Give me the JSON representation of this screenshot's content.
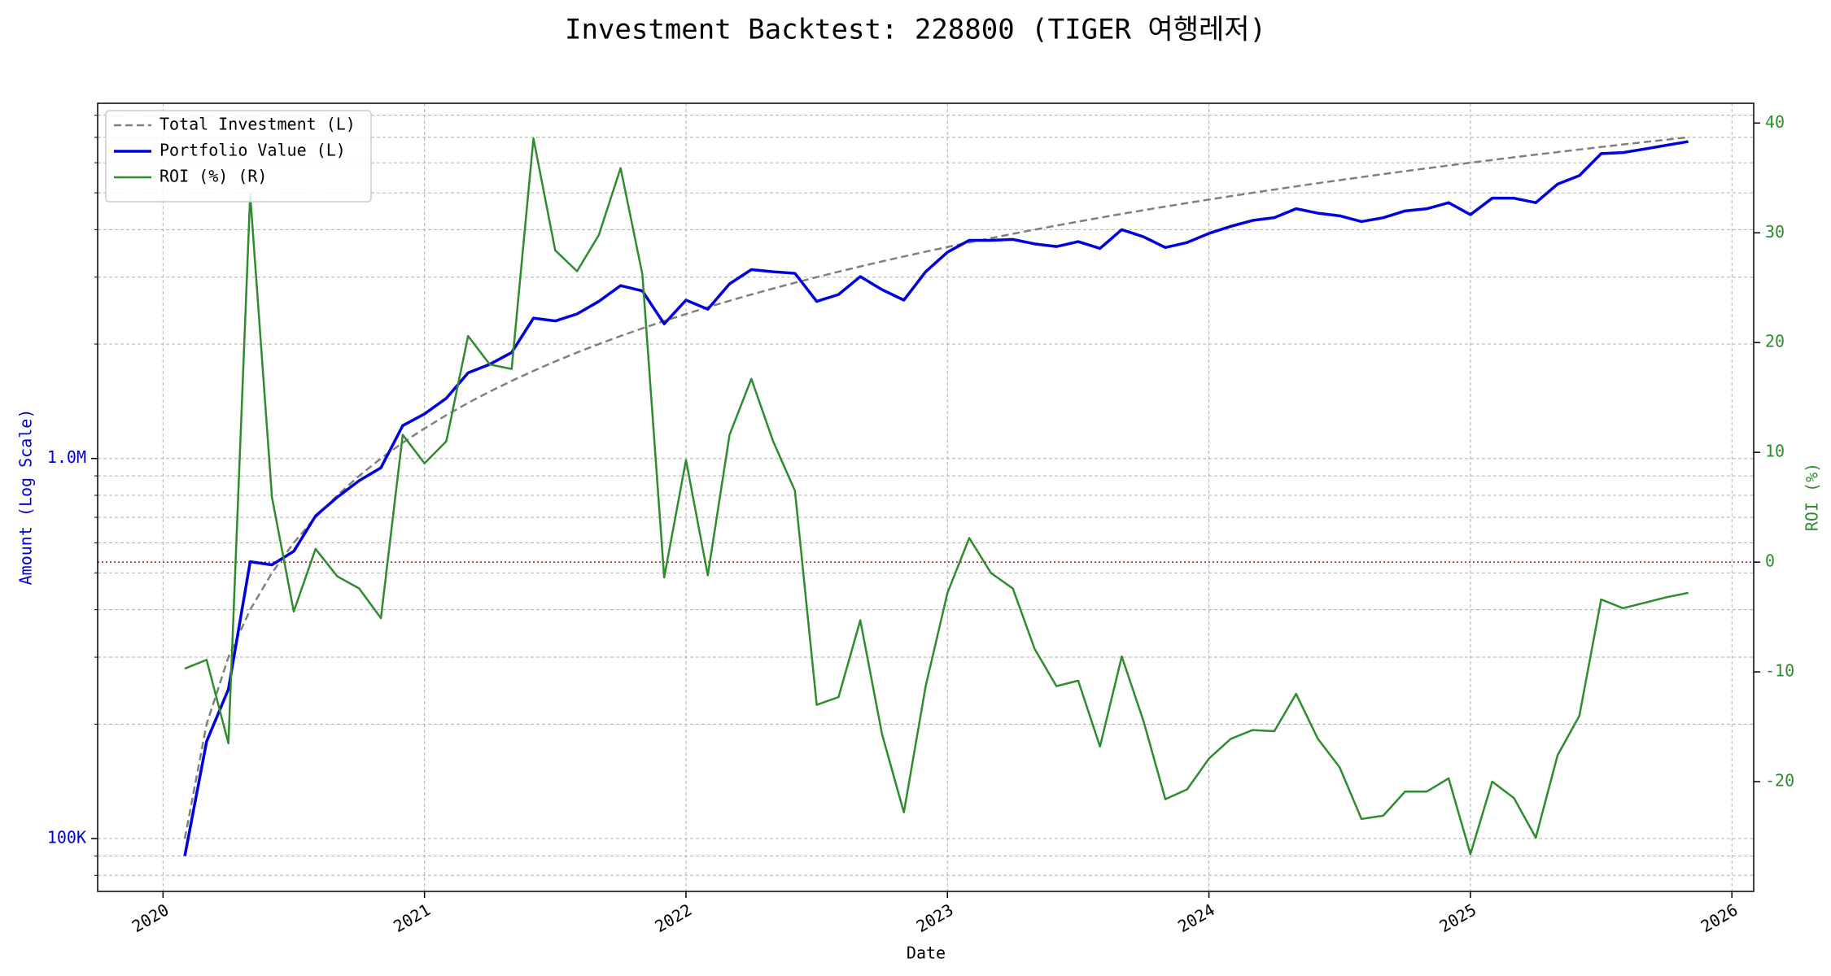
{
  "chart_data": {
    "type": "line",
    "title": "Investment Backtest: 228800 (TIGER 여행레저)",
    "xlabel": "Date",
    "ylabel": "Amount (Log Scale)",
    "y2label": "ROI (%)",
    "x": [
      "2020-02",
      "2020-03",
      "2020-04",
      "2020-05",
      "2020-06",
      "2020-07",
      "2020-08",
      "2020-09",
      "2020-10",
      "2020-11",
      "2020-12",
      "2021-01",
      "2021-02",
      "2021-03",
      "2021-04",
      "2021-05",
      "2021-06",
      "2021-07",
      "2021-08",
      "2021-09",
      "2021-10",
      "2021-11",
      "2021-12",
      "2022-01",
      "2022-02",
      "2022-03",
      "2022-04",
      "2022-05",
      "2022-06",
      "2022-07",
      "2022-08",
      "2022-09",
      "2022-10",
      "2022-11",
      "2022-12",
      "2023-01",
      "2023-02",
      "2023-03",
      "2023-04",
      "2023-05",
      "2023-06",
      "2023-07",
      "2023-08",
      "2023-09",
      "2023-10",
      "2023-11",
      "2023-12",
      "2024-01",
      "2024-02",
      "2024-03",
      "2024-04",
      "2024-05",
      "2024-06",
      "2024-07",
      "2024-08",
      "2024-09",
      "2024-10",
      "2024-11",
      "2024-12",
      "2025-01",
      "2025-02",
      "2025-03",
      "2025-04",
      "2025-05",
      "2025-06",
      "2025-07",
      "2025-08",
      "2025-09",
      "2025-10",
      "2025-11"
    ],
    "xlim": [
      "2019-10",
      "2026-02"
    ],
    "xticks": [
      "2020",
      "2021",
      "2022",
      "2023",
      "2024",
      "2025",
      "2026"
    ],
    "yscale": "log",
    "ylim": [
      72600,
      8600000
    ],
    "yticks": [
      {
        "value": 100000,
        "label": "100K"
      },
      {
        "value": 1000000,
        "label": "1.0M"
      }
    ],
    "yminorticks": [
      80000,
      90000,
      200000,
      300000,
      400000,
      500000,
      600000,
      700000,
      800000,
      900000,
      2000000,
      3000000,
      4000000,
      5000000,
      6000000,
      7000000,
      8000000
    ],
    "y2lim": [
      -30,
      41.8
    ],
    "y2ticks": [
      -20,
      -10,
      0,
      10,
      20,
      30,
      40
    ],
    "grid": true,
    "legend": "upper left",
    "reference_line": {
      "value": 0,
      "axis": "y2",
      "color": "#cc0000"
    },
    "series": [
      {
        "name": "Total Investment (L)",
        "color": "#808080",
        "linestyle": "dashed",
        "axis": "y",
        "values": [
          100000,
          200000,
          300000,
          400000,
          500000,
          600000,
          700000,
          800000,
          900000,
          1000000,
          1100000,
          1200000,
          1300000,
          1400000,
          1500000,
          1600000,
          1700000,
          1800000,
          1900000,
          2000000,
          2100000,
          2200000,
          2300000,
          2400000,
          2500000,
          2600000,
          2700000,
          2800000,
          2900000,
          3000000,
          3100000,
          3200000,
          3300000,
          3400000,
          3500000,
          3600000,
          3700000,
          3800000,
          3900000,
          4000000,
          4100000,
          4200000,
          4300000,
          4400000,
          4500000,
          4600000,
          4700000,
          4800000,
          4900000,
          5000000,
          5100000,
          5200000,
          5300000,
          5400000,
          5500000,
          5600000,
          5700000,
          5800000,
          5900000,
          6000000,
          6100000,
          6200000,
          6300000,
          6400000,
          6500000,
          6600000,
          6700000,
          6800000,
          6900000,
          7000000
        ]
      },
      {
        "name": "Portfolio Value (L)",
        "color": "#0000dd",
        "linestyle": "solid",
        "axis": "y",
        "values": [
          90000,
          180000,
          247000,
          535000,
          525000,
          570000,
          706000,
          791000,
          874000,
          945000,
          1220000,
          1310000,
          1440000,
          1680000,
          1770000,
          1900000,
          2340000,
          2300000,
          2400000,
          2590000,
          2850000,
          2760000,
          2260000,
          2610000,
          2470000,
          2880000,
          3140000,
          3100000,
          3070000,
          2590000,
          2700000,
          3010000,
          2780000,
          2610000,
          3100000,
          3490000,
          3750000,
          3750000,
          3770000,
          3670000,
          3610000,
          3720000,
          3570000,
          4000000,
          3830000,
          3590000,
          3700000,
          3910000,
          4080000,
          4230000,
          4300000,
          4540000,
          4420000,
          4350000,
          4200000,
          4300000,
          4480000,
          4540000,
          4710000,
          4380000,
          4840000,
          4840000,
          4710000,
          5270000,
          5550000,
          6340000,
          6380000,
          6520000,
          6670000,
          6820000
        ]
      },
      {
        "name": "ROI (%) (R)",
        "color": "#2e8b2e",
        "linestyle": "solid",
        "axis": "y2",
        "values": [
          -9.7,
          -8.9,
          -16.5,
          33.5,
          5.9,
          -4.5,
          1.2,
          -1.3,
          -2.4,
          -5.1,
          11.6,
          9.0,
          11.0,
          20.6,
          18.0,
          17.6,
          38.6,
          28.4,
          26.5,
          29.8,
          35.9,
          26.2,
          -1.4,
          9.3,
          -1.2,
          11.6,
          16.7,
          11.0,
          6.5,
          -13.0,
          -12.3,
          -5.3,
          -15.7,
          -22.8,
          -11.3,
          -2.8,
          2.2,
          -1.0,
          -2.4,
          -7.9,
          -11.3,
          -10.8,
          -16.8,
          -8.6,
          -14.5,
          -21.6,
          -20.7,
          -17.9,
          -16.1,
          -15.3,
          -15.4,
          -12.0,
          -16.1,
          -18.7,
          -23.4,
          -23.1,
          -20.9,
          -20.9,
          -19.7,
          -26.6,
          -20.0,
          -21.5,
          -25.1,
          -17.6,
          -14.0,
          -3.4,
          -4.2,
          -3.7,
          -3.2,
          -2.8
        ]
      }
    ]
  }
}
